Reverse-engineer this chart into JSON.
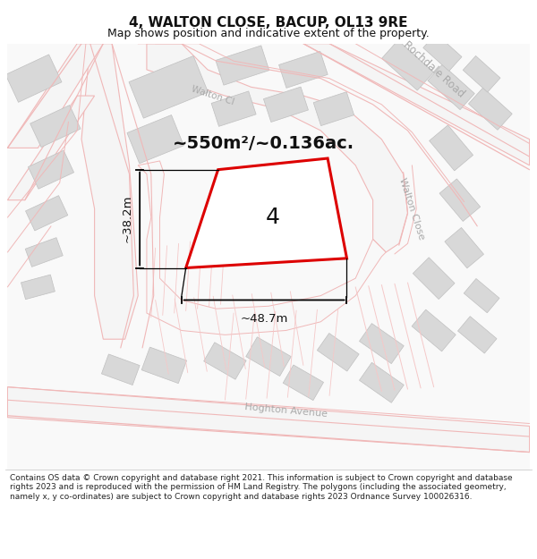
{
  "title": "4, WALTON CLOSE, BACUP, OL13 9RE",
  "subtitle": "Map shows position and indicative extent of the property.",
  "footer": "Contains OS data © Crown copyright and database right 2021. This information is subject to Crown copyright and database rights 2023 and is reproduced with the permission of HM Land Registry. The polygons (including the associated geometry, namely x, y co-ordinates) are subject to Crown copyright and database rights 2023 Ordnance Survey 100026316.",
  "area_label": "~550m²/~0.136ac.",
  "width_label": "~48.7m",
  "height_label": "~38.2m",
  "plot_number": "4",
  "bg_color": "#ffffff",
  "map_bg": "#f8f8f8",
  "road_fill": "#ffffff",
  "building_fill": "#d8d8d8",
  "building_edge": "#c0c0c0",
  "road_outline": "#f0b8b8",
  "red_poly_color": "#dd0000",
  "title_fontsize": 11,
  "subtitle_fontsize": 9,
  "footer_fontsize": 6.5
}
